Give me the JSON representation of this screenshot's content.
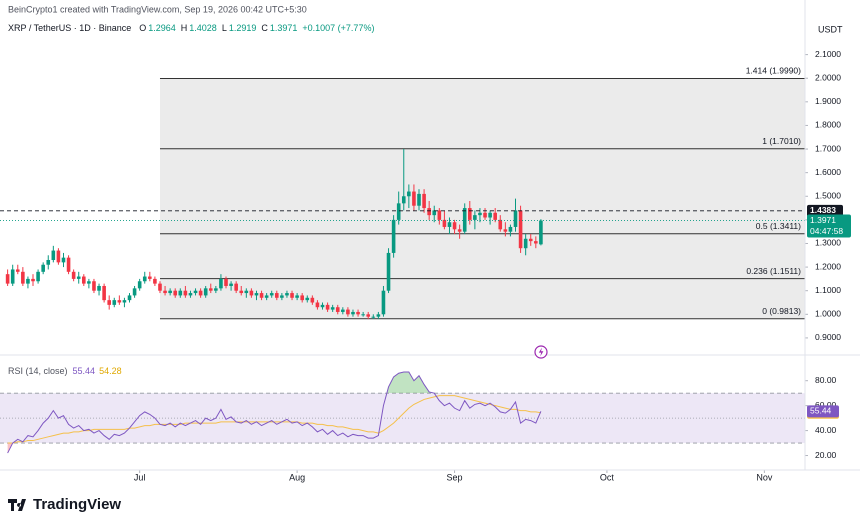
{
  "header": {
    "credit": "BeinCrypto1 created with TradingView.com, Sep 19, 2026 00:42 UTC+5:30",
    "symbol": "XRP / TetherUS · 1D · Binance",
    "ohlc_labels": [
      "O",
      "H",
      "L",
      "C"
    ],
    "change": "+0.1007 (+7.77%)"
  },
  "logo": "TradingView",
  "chart_data": [
    {
      "type": "candlestick",
      "currency": "USDT",
      "up_color": "#089981",
      "down_color": "#f23645",
      "x": [
        0,
        1,
        2,
        3,
        4,
        5,
        6,
        7,
        8,
        9,
        10,
        11,
        12,
        13,
        14,
        15,
        16,
        17,
        18,
        19,
        20,
        21,
        22,
        23,
        24,
        25,
        26,
        27,
        28,
        29,
        30,
        31,
        32,
        33,
        34,
        35,
        36,
        37,
        38,
        39,
        40,
        41,
        42,
        43,
        44,
        45,
        46,
        47,
        48,
        49,
        50,
        51,
        52,
        53,
        54,
        55,
        56,
        57,
        58,
        59,
        60,
        61,
        62,
        63,
        64,
        65,
        66,
        67,
        68,
        69,
        70,
        71,
        72,
        73,
        74,
        75,
        76,
        77,
        78,
        79,
        80,
        81,
        82,
        83,
        84,
        85,
        86,
        87,
        88,
        89,
        90,
        91,
        92,
        93,
        94,
        95,
        96,
        97,
        98,
        99,
        100,
        101,
        102,
        103,
        104,
        105
      ],
      "open": [
        1.17,
        1.13,
        1.19,
        1.18,
        1.13,
        1.15,
        1.14,
        1.18,
        1.21,
        1.23,
        1.27,
        1.22,
        1.24,
        1.18,
        1.15,
        1.16,
        1.13,
        1.14,
        1.1,
        1.12,
        1.06,
        1.04,
        1.06,
        1.05,
        1.06,
        1.08,
        1.11,
        1.14,
        1.16,
        1.15,
        1.13,
        1.1,
        1.09,
        1.1,
        1.08,
        1.1,
        1.08,
        1.09,
        1.1,
        1.08,
        1.11,
        1.1,
        1.11,
        1.15,
        1.12,
        1.13,
        1.1,
        1.09,
        1.1,
        1.08,
        1.09,
        1.07,
        1.08,
        1.09,
        1.07,
        1.08,
        1.09,
        1.07,
        1.08,
        1.06,
        1.07,
        1.05,
        1.03,
        1.04,
        1.02,
        1.03,
        1.01,
        1.02,
        1.0,
        1.01,
        1.0,
        1.0,
        0.99,
        0.99,
        1.0,
        1.1,
        1.26,
        1.4,
        1.47,
        1.5,
        1.52,
        1.46,
        1.51,
        1.45,
        1.42,
        1.44,
        1.4,
        1.37,
        1.39,
        1.36,
        1.35,
        1.45,
        1.4,
        1.42,
        1.43,
        1.41,
        1.43,
        1.4,
        1.36,
        1.35,
        1.37,
        1.44,
        1.28,
        1.32,
        1.31,
        1.2964
      ],
      "high": [
        1.19,
        1.21,
        1.21,
        1.2,
        1.16,
        1.17,
        1.19,
        1.22,
        1.25,
        1.29,
        1.28,
        1.26,
        1.25,
        1.19,
        1.18,
        1.17,
        1.15,
        1.15,
        1.13,
        1.13,
        1.08,
        1.07,
        1.08,
        1.07,
        1.09,
        1.12,
        1.15,
        1.18,
        1.18,
        1.16,
        1.14,
        1.12,
        1.11,
        1.11,
        1.11,
        1.12,
        1.1,
        1.11,
        1.11,
        1.12,
        1.13,
        1.12,
        1.17,
        1.16,
        1.14,
        1.14,
        1.12,
        1.11,
        1.11,
        1.1,
        1.1,
        1.09,
        1.1,
        1.1,
        1.09,
        1.1,
        1.1,
        1.09,
        1.09,
        1.08,
        1.08,
        1.06,
        1.05,
        1.05,
        1.04,
        1.04,
        1.03,
        1.03,
        1.02,
        1.02,
        1.01,
        1.01,
        1.0,
        1.01,
        1.12,
        1.28,
        1.42,
        1.52,
        1.7,
        1.55,
        1.55,
        1.53,
        1.53,
        1.48,
        1.46,
        1.45,
        1.44,
        1.41,
        1.4,
        1.38,
        1.47,
        1.48,
        1.44,
        1.45,
        1.45,
        1.44,
        1.45,
        1.42,
        1.39,
        1.38,
        1.49,
        1.46,
        1.34,
        1.34,
        1.33,
        1.4028
      ],
      "low": [
        1.12,
        1.12,
        1.17,
        1.12,
        1.11,
        1.12,
        1.13,
        1.17,
        1.19,
        1.22,
        1.21,
        1.2,
        1.17,
        1.14,
        1.13,
        1.12,
        1.11,
        1.09,
        1.08,
        1.05,
        1.02,
        1.03,
        1.04,
        1.03,
        1.05,
        1.07,
        1.1,
        1.13,
        1.14,
        1.12,
        1.09,
        1.08,
        1.08,
        1.07,
        1.07,
        1.07,
        1.07,
        1.08,
        1.07,
        1.07,
        1.09,
        1.09,
        1.1,
        1.11,
        1.1,
        1.09,
        1.08,
        1.07,
        1.07,
        1.06,
        1.06,
        1.06,
        1.07,
        1.06,
        1.06,
        1.07,
        1.06,
        1.06,
        1.05,
        1.05,
        1.04,
        1.02,
        1.02,
        1.01,
        1.01,
        1.0,
        1.0,
        0.99,
        0.99,
        0.99,
        0.99,
        0.98,
        0.98,
        0.98,
        0.99,
        1.09,
        1.24,
        1.38,
        1.44,
        1.45,
        1.44,
        1.44,
        1.43,
        1.4,
        1.39,
        1.38,
        1.36,
        1.34,
        1.34,
        1.32,
        1.34,
        1.38,
        1.36,
        1.39,
        1.4,
        1.38,
        1.39,
        1.35,
        1.33,
        1.33,
        1.35,
        1.26,
        1.25,
        1.29,
        1.28,
        1.2919
      ],
      "close": [
        1.13,
        1.19,
        1.18,
        1.13,
        1.15,
        1.14,
        1.18,
        1.21,
        1.23,
        1.27,
        1.22,
        1.24,
        1.18,
        1.15,
        1.16,
        1.13,
        1.14,
        1.1,
        1.12,
        1.06,
        1.04,
        1.06,
        1.05,
        1.06,
        1.08,
        1.11,
        1.14,
        1.16,
        1.15,
        1.13,
        1.1,
        1.09,
        1.1,
        1.08,
        1.1,
        1.08,
        1.09,
        1.1,
        1.08,
        1.11,
        1.1,
        1.11,
        1.15,
        1.12,
        1.13,
        1.1,
        1.09,
        1.1,
        1.08,
        1.09,
        1.07,
        1.08,
        1.09,
        1.07,
        1.08,
        1.09,
        1.07,
        1.08,
        1.06,
        1.07,
        1.05,
        1.03,
        1.04,
        1.02,
        1.03,
        1.01,
        1.02,
        1.0,
        1.01,
        1.0,
        1.0,
        0.99,
        0.99,
        1.0,
        1.1,
        1.26,
        1.4,
        1.47,
        1.5,
        1.52,
        1.46,
        1.51,
        1.45,
        1.42,
        1.44,
        1.4,
        1.37,
        1.39,
        1.36,
        1.35,
        1.45,
        1.4,
        1.42,
        1.43,
        1.41,
        1.43,
        1.4,
        1.36,
        1.35,
        1.37,
        1.44,
        1.28,
        1.32,
        1.31,
        1.3,
        1.3971
      ],
      "xlim": [
        -1.5,
        157
      ],
      "ylim": [
        0.87,
        2.2
      ],
      "xticks": [
        {
          "value": 26,
          "label": "Jul"
        },
        {
          "value": 57,
          "label": "Aug"
        },
        {
          "value": 88,
          "label": "Sep"
        },
        {
          "value": 118,
          "label": "Oct"
        },
        {
          "value": 149,
          "label": "Nov"
        }
      ],
      "yticks": [
        {
          "value": 0.9,
          "label": "0.9000"
        },
        {
          "value": 1.0,
          "label": "1.0000"
        },
        {
          "value": 1.1,
          "label": "1.1000"
        },
        {
          "value": 1.2,
          "label": "1.2000"
        },
        {
          "value": 1.3,
          "label": "1.3000"
        },
        {
          "value": 1.4,
          "label": "1.4000"
        },
        {
          "value": 1.5,
          "label": "1.5000"
        },
        {
          "value": 1.6,
          "label": "1.6000"
        },
        {
          "value": 1.7,
          "label": "1.7000"
        },
        {
          "value": 1.8,
          "label": "1.8000"
        },
        {
          "value": 1.9,
          "label": "1.9000"
        },
        {
          "value": 2.0,
          "label": "2.0000"
        },
        {
          "value": 2.1,
          "label": "2.1000"
        }
      ],
      "grid": false,
      "fib_x_start": 30,
      "fib_color": "#ebebeb",
      "fib_levels": [
        {
          "value": 1.999,
          "label": "1.414 (1.9990)"
        },
        {
          "value": 1.701,
          "label": "1 (1.7010)"
        },
        {
          "value": 1.3411,
          "label": "0.5 (1.3411)"
        },
        {
          "value": 1.1511,
          "label": "0.236 (1.1511)"
        },
        {
          "value": 0.9813,
          "label": "0 (0.9813)"
        }
      ],
      "hline": 1.4383,
      "countdown": "04:47:58"
    },
    {
      "type": "line",
      "title": "RSI (14, close)",
      "x": [
        0,
        1,
        2,
        3,
        4,
        5,
        6,
        7,
        8,
        9,
        10,
        11,
        12,
        13,
        14,
        15,
        16,
        17,
        18,
        19,
        20,
        21,
        22,
        23,
        24,
        25,
        26,
        27,
        28,
        29,
        30,
        31,
        32,
        33,
        34,
        35,
        36,
        37,
        38,
        39,
        40,
        41,
        42,
        43,
        44,
        45,
        46,
        47,
        48,
        49,
        50,
        51,
        52,
        53,
        54,
        55,
        56,
        57,
        58,
        59,
        60,
        61,
        62,
        63,
        64,
        65,
        66,
        67,
        68,
        69,
        70,
        71,
        72,
        73,
        74,
        75,
        76,
        77,
        78,
        79,
        80,
        81,
        82,
        83,
        84,
        85,
        86,
        87,
        88,
        89,
        90,
        91,
        92,
        93,
        94,
        95,
        96,
        97,
        98,
        99,
        100,
        101,
        102,
        103,
        104,
        105
      ],
      "series": [
        {
          "color": "#7e57c2",
          "values": [
            22,
            30,
            33,
            31,
            36,
            35,
            40,
            46,
            50,
            56,
            50,
            52,
            45,
            42,
            44,
            40,
            41,
            38,
            40,
            36,
            33,
            37,
            36,
            38,
            42,
            47,
            52,
            55,
            53,
            50,
            45,
            44,
            46,
            43,
            46,
            44,
            46,
            48,
            45,
            50,
            48,
            50,
            57,
            49,
            51,
            47,
            46,
            48,
            45,
            47,
            44,
            46,
            48,
            45,
            47,
            49,
            46,
            47,
            44,
            46,
            43,
            39,
            41,
            37,
            40,
            36,
            38,
            35,
            37,
            36,
            36,
            34,
            34,
            36,
            60,
            75,
            83,
            86,
            87,
            87,
            80,
            84,
            77,
            71,
            70,
            64,
            60,
            62,
            58,
            56,
            64,
            58,
            61,
            62,
            60,
            62,
            59,
            55,
            54,
            57,
            63,
            46,
            49,
            48,
            46,
            55.44
          ]
        },
        {
          "color": "#f5c04a",
          "values": [
            30,
            30,
            31,
            31,
            32,
            32,
            33,
            34,
            35,
            36,
            37,
            38,
            38,
            39,
            39,
            40,
            40,
            41,
            41,
            41,
            41,
            41,
            41,
            41,
            42,
            42,
            43,
            44,
            44,
            45,
            45,
            45,
            45,
            45,
            45,
            46,
            46,
            46,
            46,
            46,
            46,
            46,
            47,
            47,
            47,
            47,
            47,
            47,
            47,
            47,
            47,
            47,
            47,
            47,
            47,
            47,
            47,
            47,
            46,
            46,
            46,
            45,
            45,
            44,
            44,
            43,
            43,
            42,
            41,
            41,
            40,
            39,
            39,
            38,
            40,
            43,
            46,
            50,
            54,
            58,
            61,
            63,
            65,
            66,
            67,
            68,
            68,
            68,
            68,
            67,
            66,
            65,
            64,
            63,
            62,
            61,
            60,
            59,
            58,
            57,
            57,
            56,
            56,
            55,
            55,
            54.28
          ]
        }
      ],
      "xlim": [
        -1.5,
        157
      ],
      "ylim": [
        10,
        95
      ],
      "yticks": [
        {
          "value": 20,
          "label": "20.00"
        },
        {
          "value": 40,
          "label": "40.00"
        },
        {
          "value": 60,
          "label": "60.00"
        },
        {
          "value": 80,
          "label": "80.00"
        }
      ],
      "band_levels": [
        30,
        50,
        70
      ],
      "band_color": "#ede7f6",
      "overbought_color": "#4caf50",
      "oversold_color": "#f23645"
    }
  ]
}
